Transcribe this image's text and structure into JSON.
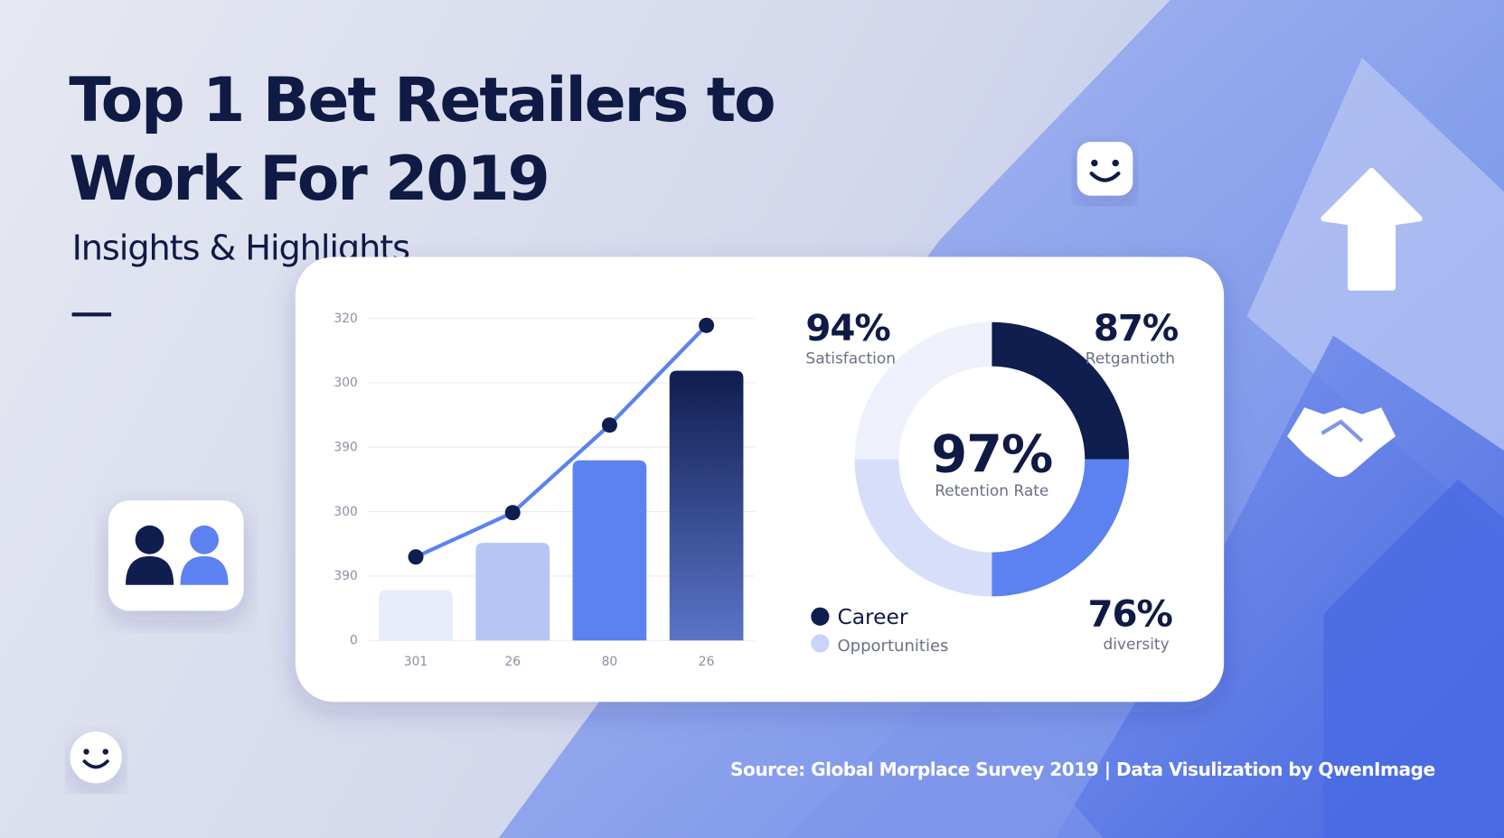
{
  "header": {
    "title_lines": [
      "Top 1 Bet Retailers to",
      "Work For 2019"
    ],
    "subtitle": "Insights & Highlights"
  },
  "chart_data": [
    {
      "type": "combo",
      "categories": [
        "301",
        "26",
        "80",
        "26"
      ],
      "ylim": [
        0,
        320
      ],
      "yticks": [
        0,
        {
          "value": 64,
          "label": "390"
        },
        {
          "value": 128,
          "label": "300"
        },
        {
          "value": 192,
          "label": "390"
        },
        {
          "value": 256,
          "label": "300"
        },
        320
      ],
      "grid": true,
      "series": [
        {
          "type": "bar",
          "values": [
            50,
            97,
            179,
            268
          ],
          "colors": [
            "#e8ebf8",
            "#b4c5f6",
            "#5b82f0",
            "#0f1d4f"
          ],
          "gradient_to": [
            null,
            null,
            null,
            "#5b74c8"
          ]
        },
        {
          "type": "line",
          "values": [
            83,
            127,
            214,
            313
          ],
          "color": "#5b82f0",
          "marker_color": "#0f1d4f"
        }
      ]
    },
    {
      "type": "donut",
      "values": [
        25,
        25,
        25,
        25
      ],
      "colors": [
        "#0f1d4f",
        "#5b82f0",
        "#d6defa",
        "#eef0fb"
      ],
      "center_value": "97%",
      "center_label": "Retention Rate",
      "legend": [
        {
          "name": "Career",
          "color": "#0f1d4f"
        },
        {
          "name": "Opportunities",
          "color": "#c9d4f8"
        }
      ]
    }
  ],
  "stats": [
    {
      "value": "94%",
      "label": "Satisfaction"
    },
    {
      "value": "87%",
      "label": "Retgantioth"
    },
    {
      "value": "76%",
      "label": "diversity"
    }
  ],
  "footer": "Source: Global Morplace Survey 2019 | Data Visulization by QwenImage"
}
